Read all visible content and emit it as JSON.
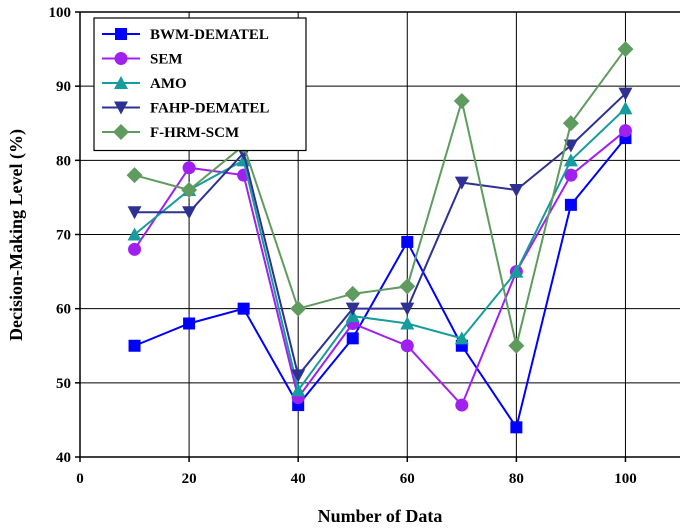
{
  "chart_data": {
    "type": "line",
    "title": "",
    "xlabel": "Number of Data",
    "ylabel": "Decision-Making Level (%)",
    "xlim": [
      0,
      110
    ],
    "ylim": [
      40,
      100
    ],
    "xticks": [
      0,
      20,
      40,
      60,
      80,
      100
    ],
    "yticks": [
      40,
      50,
      60,
      70,
      80,
      90,
      100
    ],
    "grid": true,
    "legend": "top-left",
    "x": [
      10,
      20,
      30,
      40,
      50,
      60,
      70,
      80,
      90,
      100
    ],
    "series": [
      {
        "name": "BWM-DEMATEL",
        "color": "#0000ff",
        "marker": "square",
        "values": [
          55,
          58,
          60,
          47,
          56,
          69,
          55,
          44,
          74,
          83
        ]
      },
      {
        "name": "SEM",
        "color": "#a020f0",
        "marker": "circle",
        "values": [
          68,
          79,
          78,
          48,
          58,
          55,
          47,
          65,
          78,
          84
        ]
      },
      {
        "name": "AMO",
        "color": "#169c9c",
        "marker": "triangle-up",
        "values": [
          70,
          76,
          80,
          49,
          59,
          58,
          56,
          65,
          80,
          87
        ]
      },
      {
        "name": "FAHP-DEMATEL",
        "color": "#2e3192",
        "marker": "triangle-down",
        "values": [
          73,
          73,
          81,
          51,
          60,
          60,
          77,
          76,
          82,
          89
        ]
      },
      {
        "name": "F-HRM-SCM",
        "color": "#5f9b5f",
        "marker": "diamond",
        "values": [
          78,
          76,
          82,
          60,
          62,
          63,
          88,
          55,
          85,
          95
        ]
      }
    ]
  }
}
